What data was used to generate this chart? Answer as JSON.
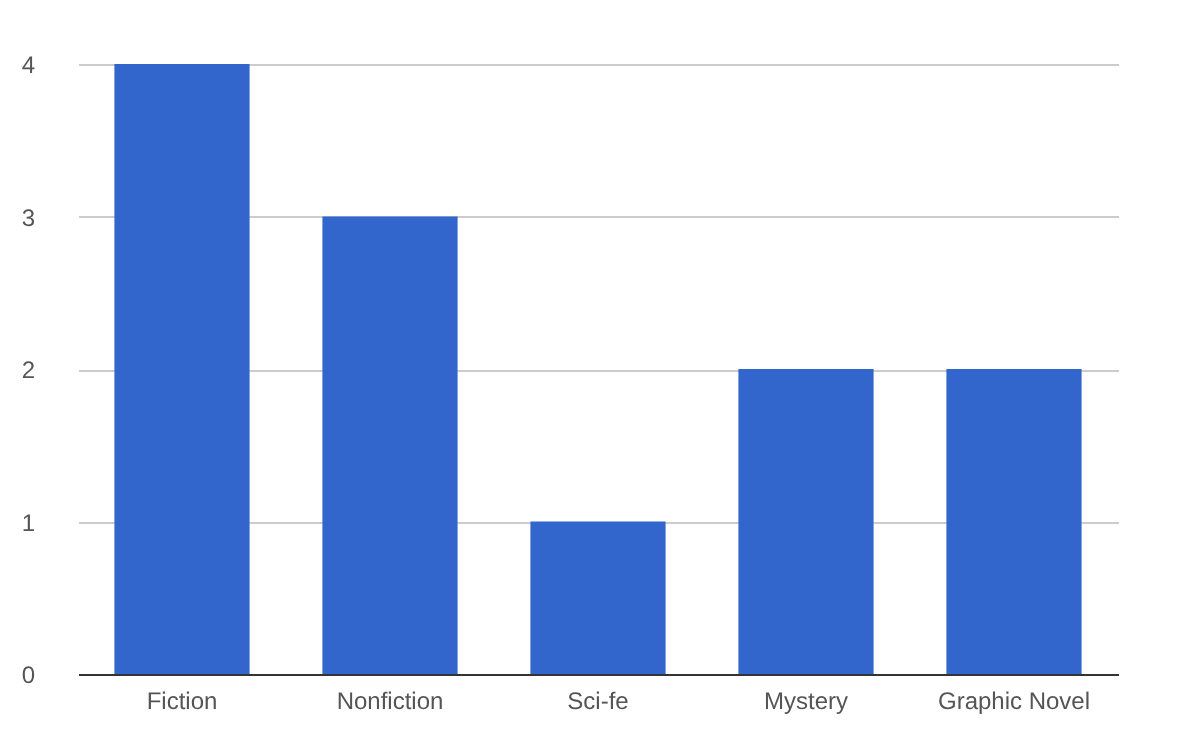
{
  "chart_data": {
    "type": "bar",
    "categories": [
      "Fiction",
      "Nonfiction",
      "Sci-fe",
      "Mystery",
      "Graphic Novel"
    ],
    "values": [
      4,
      3,
      1,
      2,
      2
    ],
    "color": "#3366cc",
    "ylim": [
      0,
      4
    ],
    "yticks": [
      0,
      1,
      2,
      3,
      4
    ],
    "grid": "y"
  }
}
